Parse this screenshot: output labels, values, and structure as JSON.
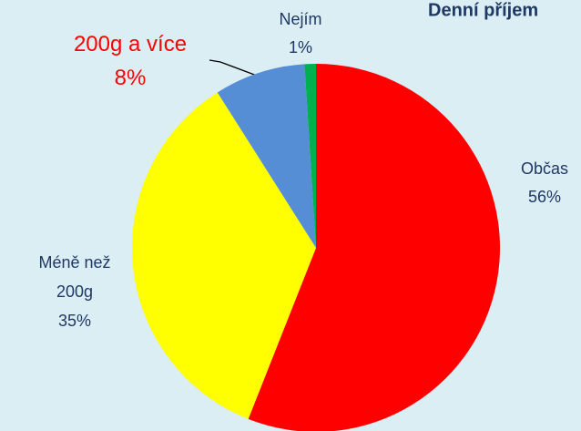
{
  "chart_data": {
    "type": "pie",
    "title": "Denní příjem",
    "categories": [
      "Občas",
      "Méně než 200g",
      "200g a více",
      "Nejím"
    ],
    "values": [
      56,
      35,
      8,
      1
    ],
    "value_labels": [
      "56%",
      "35%",
      "8%",
      "1%"
    ],
    "colors": [
      "#ff0000",
      "#ffff00",
      "#558ed5",
      "#00b050"
    ],
    "label_colors": [
      "#1f3864",
      "#1f3864",
      "#ff0000",
      "#1f3864"
    ]
  }
}
